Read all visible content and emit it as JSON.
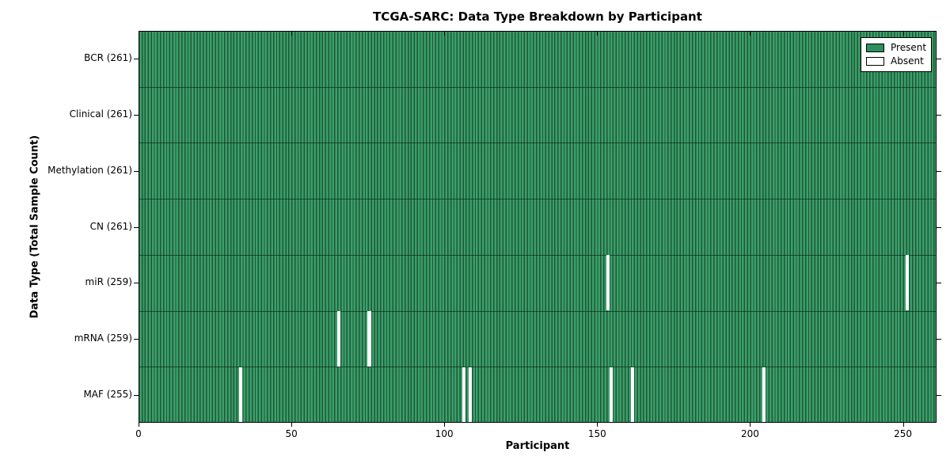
{
  "title": "TCGA-SARC: Data Type Breakdown by Participant",
  "chart_data": {
    "type": "heatmap",
    "title": "TCGA-SARC: Data Type Breakdown by Participant",
    "xlabel": "Participant",
    "ylabel": "Data Type (Total Sample Count)",
    "xlim": [
      0,
      261
    ],
    "x_ticks": [
      0,
      50,
      100,
      150,
      200,
      250
    ],
    "n_participants": 261,
    "grid": false,
    "legend_position": "upper right",
    "rows": [
      {
        "label": "BCR (261)",
        "data_type": "BCR",
        "total_samples": 261,
        "absent_participants": []
      },
      {
        "label": "Clinical (261)",
        "data_type": "Clinical",
        "total_samples": 261,
        "absent_participants": []
      },
      {
        "label": "Methylation (261)",
        "data_type": "Methylation",
        "total_samples": 261,
        "absent_participants": []
      },
      {
        "label": "CN (261)",
        "data_type": "CN",
        "total_samples": 261,
        "absent_participants": []
      },
      {
        "label": "miR (259)",
        "data_type": "miR",
        "total_samples": 259,
        "absent_participants": [
          153,
          251
        ]
      },
      {
        "label": "mRNA (259)",
        "data_type": "mRNA",
        "total_samples": 259,
        "absent_participants": [
          65,
          75
        ]
      },
      {
        "label": "MAF (255)",
        "data_type": "MAF",
        "total_samples": 255,
        "absent_participants": [
          33,
          106,
          108,
          154,
          161,
          204
        ]
      }
    ],
    "legend": [
      {
        "label": "Present",
        "color": "#2e8f5e"
      },
      {
        "label": "Absent",
        "color": "#ffffff"
      }
    ],
    "colors": {
      "present_fill": "#3d9e6a",
      "present_edge": "#1a5937",
      "absent": "#ffffff",
      "frame": "#000000"
    }
  }
}
